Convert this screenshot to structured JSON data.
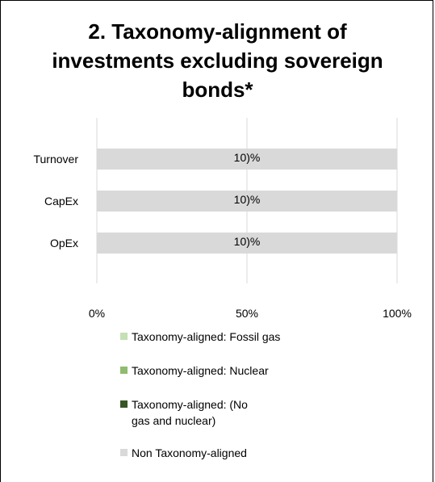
{
  "chart_data": {
    "type": "bar",
    "orientation": "horizontal",
    "stacked": true,
    "title": "2. Taxonomy-alignment of investments excluding sovereign bonds*",
    "categories": [
      "Turnover",
      "CapEx",
      "OpEx"
    ],
    "series": [
      {
        "name": "Taxonomy-aligned: Fossil gas",
        "color": "#c5e0b4",
        "values": [
          0,
          0,
          0
        ]
      },
      {
        "name": "Taxonomy-aligned: Nuclear",
        "color": "#8fbc6e",
        "values": [
          0,
          0,
          0
        ]
      },
      {
        "name": "Taxonomy-aligned: (No gas and nuclear)",
        "color": "#375623",
        "values": [
          0,
          0,
          0
        ]
      },
      {
        "name": "Non Taxonomy-aligned",
        "color": "#d9d9d9",
        "values": [
          100,
          100,
          100
        ]
      }
    ],
    "data_labels": [
      "10)%",
      "10)%",
      "10)%"
    ],
    "xlim": [
      0,
      100
    ],
    "x_ticks": [
      "0%",
      "50%",
      "100%"
    ],
    "gridlines": true,
    "legend_position": "bottom"
  }
}
